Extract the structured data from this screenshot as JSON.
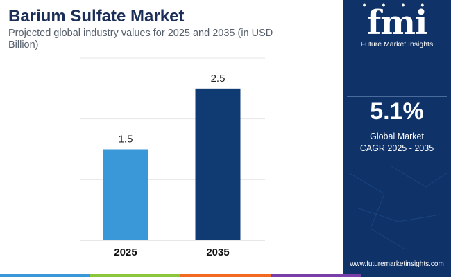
{
  "header": {
    "title": "Barium Sulfate Market",
    "subtitle": "Projected global industry values for 2025 and 2035 (in USD Billion)"
  },
  "chart_data": {
    "type": "bar",
    "categories": [
      "2025",
      "2035"
    ],
    "values": [
      1.5,
      2.5
    ],
    "data_labels": [
      "1.5",
      "2.5"
    ],
    "title": "Barium Sulfate Market",
    "subtitle": "Projected global industry values for 2025 and 2035 (in USD Billion)",
    "xlabel": "",
    "ylabel": "",
    "ylim": [
      0,
      3
    ],
    "grid": true,
    "legend": "none",
    "bar_colors": [
      "#3a98d9",
      "#0f3a72"
    ]
  },
  "sidebar": {
    "logo_text": "fmi",
    "logo_name": "Future Market Insights",
    "cagr_value": "5.1%",
    "cagr_label_line1": "Global Market",
    "cagr_label_line2": "CAGR 2025 - 2035",
    "website": "www.futuremarketinsights.com"
  },
  "colors": {
    "sidebar_bg": "#0f3268",
    "title": "#1b2e58",
    "bottom_bar": [
      "#3a98d9",
      "#8cc63f",
      "#f26a21",
      "#7a3ea8",
      "#0f3268"
    ]
  }
}
